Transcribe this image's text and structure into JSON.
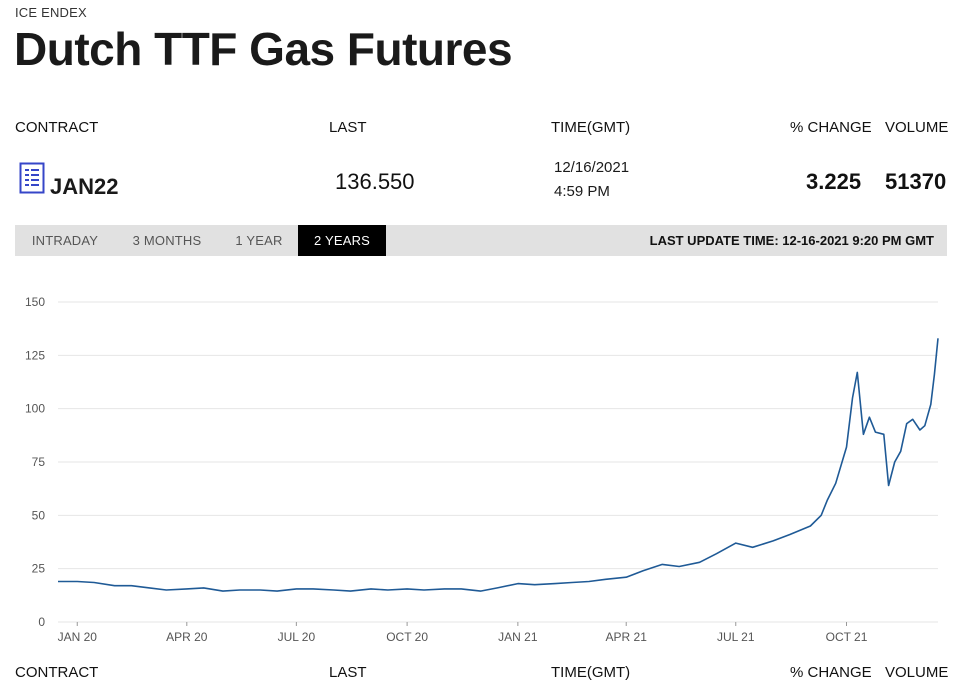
{
  "header": {
    "exchange": "ICE ENDEX",
    "title": "Dutch TTF Gas Futures"
  },
  "table": {
    "columns": [
      "CONTRACT",
      "LAST",
      "TIME(GMT)",
      "% CHANGE",
      "VOLUME"
    ],
    "row": {
      "contract": "JAN22",
      "last": "136.550",
      "date": "12/16/2021",
      "time": "4:59 PM",
      "pct_change": "3.225",
      "volume": "51370"
    }
  },
  "tabs": {
    "items": [
      "INTRADAY",
      "3 MONTHS",
      "1 YEAR",
      "2 YEARS"
    ],
    "active": "2 YEARS",
    "last_update": "LAST UPDATE TIME: 12-16-2021 9:20 PM GMT"
  },
  "colors": {
    "line": "#1f5a96",
    "grid": "#e6e6e6",
    "tab_active_bg": "#000000",
    "tab_bar_bg": "#e1e1e1",
    "icon": "#3646c8"
  },
  "icons": [
    "contract-document-icon"
  ],
  "chart_data": {
    "type": "line",
    "title": "",
    "xlabel": "",
    "ylabel": "",
    "ylim": [
      0,
      150
    ],
    "yticks": [
      0,
      25,
      50,
      75,
      100,
      125,
      150
    ],
    "xticks": [
      {
        "label": "JAN 20",
        "date": "2020-01-01"
      },
      {
        "label": "APR 20",
        "date": "2020-04-01"
      },
      {
        "label": "JUL 20",
        "date": "2020-07-01"
      },
      {
        "label": "OCT 20",
        "date": "2020-10-01"
      },
      {
        "label": "JAN 21",
        "date": "2021-01-01"
      },
      {
        "label": "APR 21",
        "date": "2021-04-01"
      },
      {
        "label": "JUL 21",
        "date": "2021-07-01"
      },
      {
        "label": "OCT 21",
        "date": "2021-10-01"
      }
    ],
    "xlim": [
      "2019-12-16",
      "2021-12-16"
    ],
    "grid": true,
    "series": [
      {
        "x": [
          "2019-12-16",
          "2020-01-01",
          "2020-01-15",
          "2020-02-01",
          "2020-02-15",
          "2020-03-01",
          "2020-03-15",
          "2020-04-01",
          "2020-04-15",
          "2020-05-01",
          "2020-05-15",
          "2020-06-01",
          "2020-06-15",
          "2020-07-01",
          "2020-07-15",
          "2020-08-01",
          "2020-08-15",
          "2020-09-01",
          "2020-09-15",
          "2020-10-01",
          "2020-10-15",
          "2020-11-01",
          "2020-11-15",
          "2020-12-01",
          "2020-12-15",
          "2021-01-01",
          "2021-01-15",
          "2021-02-01",
          "2021-02-15",
          "2021-03-01",
          "2021-03-15",
          "2021-04-01",
          "2021-04-15",
          "2021-05-01",
          "2021-05-15",
          "2021-06-01",
          "2021-06-15",
          "2021-07-01",
          "2021-07-15",
          "2021-08-01",
          "2021-08-15",
          "2021-09-01",
          "2021-09-10",
          "2021-09-15",
          "2021-09-22",
          "2021-10-01",
          "2021-10-06",
          "2021-10-10",
          "2021-10-15",
          "2021-10-20",
          "2021-10-25",
          "2021-11-01",
          "2021-11-05",
          "2021-11-10",
          "2021-11-15",
          "2021-11-20",
          "2021-11-25",
          "2021-12-01",
          "2021-12-05",
          "2021-12-10",
          "2021-12-13",
          "2021-12-16"
        ],
        "values": [
          19,
          19,
          18.5,
          17,
          17,
          16,
          15,
          15.5,
          16,
          14.5,
          15,
          15,
          14.5,
          15.5,
          15.5,
          15,
          14.5,
          15.5,
          15,
          15.5,
          15,
          15.5,
          15.5,
          14.5,
          16,
          18,
          17.5,
          18,
          18.5,
          19,
          20,
          21,
          24,
          27,
          26,
          28,
          32,
          37,
          35,
          38,
          41,
          45,
          50,
          57,
          65,
          82,
          105,
          117,
          88,
          96,
          89,
          88,
          64,
          75,
          80,
          93,
          95,
          90,
          92,
          102,
          116,
          133
        ]
      }
    ]
  }
}
